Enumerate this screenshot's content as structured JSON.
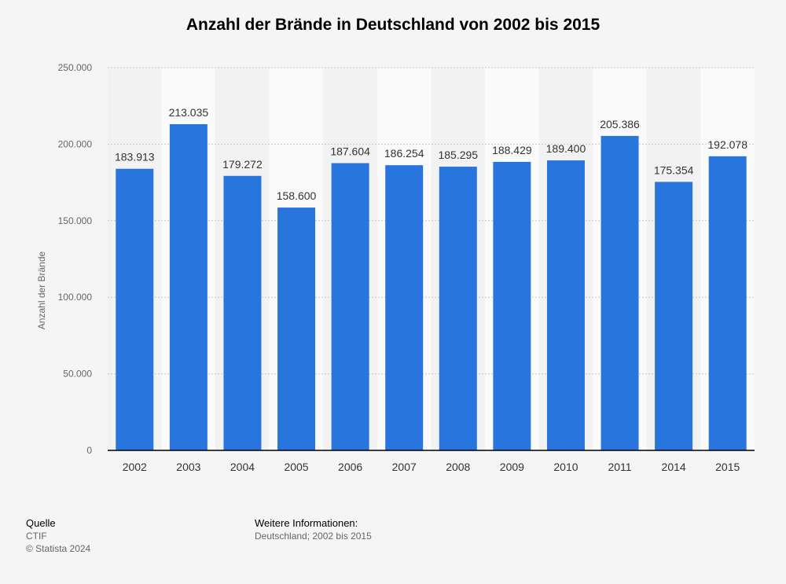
{
  "chart_data": {
    "type": "bar",
    "title": "Anzahl der Brände in Deutschland von 2002 bis 2015",
    "ylabel": "Anzahl der Brände",
    "xlabel": "",
    "categories": [
      "2002",
      "2003",
      "2004",
      "2005",
      "2006",
      "2007",
      "2008",
      "2009",
      "2010",
      "2011",
      "2014",
      "2015"
    ],
    "values": [
      183913,
      213035,
      179272,
      158600,
      187604,
      186254,
      185295,
      188429,
      189400,
      205386,
      175354,
      192078
    ],
    "value_labels": [
      "183.913",
      "213.035",
      "179.272",
      "158.600",
      "187.604",
      "186.254",
      "185.295",
      "188.429",
      "189.400",
      "205.386",
      "175.354",
      "192.078"
    ],
    "ylim": [
      0,
      250000
    ],
    "yticks": [
      0,
      50000,
      100000,
      150000,
      200000,
      250000
    ],
    "ytick_labels": [
      "0",
      "50.000",
      "100.000",
      "150.000",
      "200.000",
      "250.000"
    ],
    "grid": true,
    "legend": "none",
    "bar_color": "#2876dd"
  },
  "footer": {
    "source_heading": "Quelle",
    "source_name": "CTIF",
    "copyright": "© Statista 2024",
    "info_heading": "Weitere Informationen:",
    "info_text": "Deutschland; 2002 bis 2015"
  }
}
